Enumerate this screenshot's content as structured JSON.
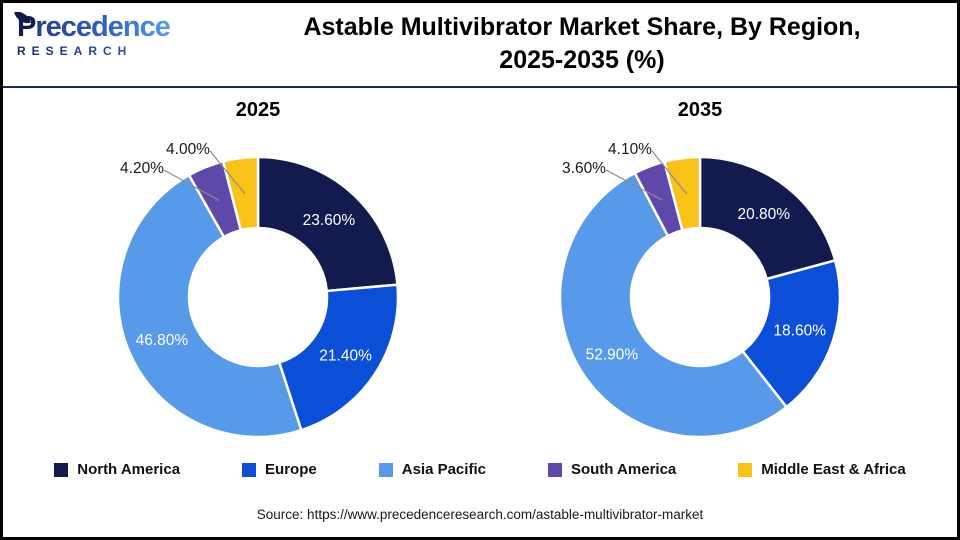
{
  "header": {
    "logo": {
      "name_initial": "P",
      "name_rest": "recedence",
      "sub": "RESEARCH"
    },
    "title_line1": "Astable Multivibrator Market Share, By Region,",
    "title_line2": "2025-2035 (%)"
  },
  "chart_data": {
    "type": "pie",
    "subtype": "donut",
    "title": "Astable Multivibrator Market Share, By Region, 2025-2035 (%)",
    "categories": [
      "North America",
      "Europe",
      "Asia Pacific",
      "South America",
      "Middle East & Africa"
    ],
    "colors": [
      "#131B4E",
      "#0B4FD8",
      "#579AE9",
      "#5E49AB",
      "#F9C216"
    ],
    "series": [
      {
        "name": "2025",
        "values": [
          23.6,
          21.4,
          46.8,
          4.2,
          4.0
        ],
        "labels": [
          "23.60%",
          "21.40%",
          "46.80%",
          "4.20%",
          "4.00%"
        ]
      },
      {
        "name": "2035",
        "values": [
          20.8,
          18.6,
          52.9,
          3.6,
          4.1
        ],
        "labels": [
          "20.80%",
          "18.60%",
          "52.90%",
          "3.60%",
          "4.10%"
        ]
      }
    ],
    "legend_position": "bottom",
    "start_angle_deg": 0,
    "direction": "clockwise"
  },
  "legend": {
    "items": [
      {
        "label": "North America",
        "color": "#131B4E"
      },
      {
        "label": "Europe",
        "color": "#0B4FD8"
      },
      {
        "label": "Asia Pacific",
        "color": "#579AE9"
      },
      {
        "label": "South America",
        "color": "#5E49AB"
      },
      {
        "label": "Middle East & Africa",
        "color": "#F9C216"
      }
    ]
  },
  "source": {
    "text": "Source: https://www.precedenceresearch.com/astable-multivibrator-market"
  }
}
